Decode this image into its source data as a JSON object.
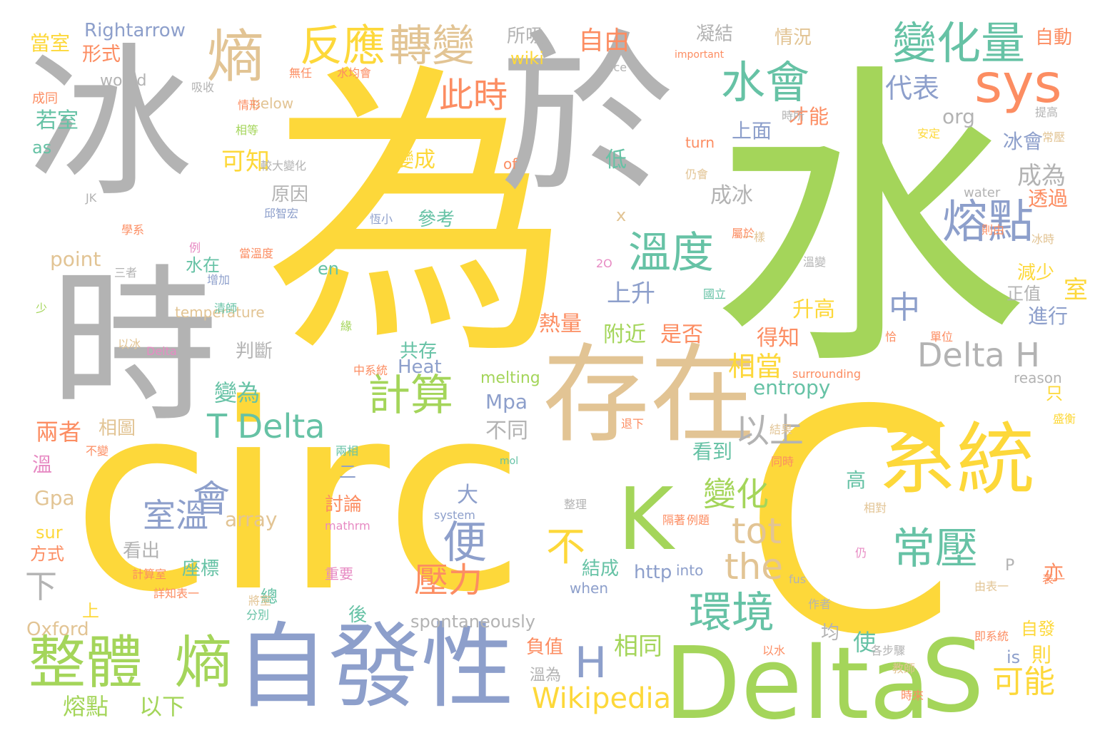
{
  "palette": {
    "yellow": "#fdd83a",
    "green": "#a4d55a",
    "gray": "#b3b3b3",
    "tan": "#e2c494",
    "blue": "#8d9fcb",
    "teal": "#66c2a5",
    "orange": "#fc8d62",
    "pink": "#e78ac3"
  },
  "words": [
    "冰",
    "為",
    "於",
    "水",
    "時",
    "circ",
    "C",
    "存在",
    "系統",
    "自發性",
    "Delta",
    "S",
    "K",
    "sys",
    "整體",
    "熵",
    "熵",
    "反應",
    "轉變",
    "變化量",
    "水會",
    "熔點",
    "溫度",
    "計算",
    "環境",
    "常壓",
    "Delta H",
    "T Delta",
    "此時",
    "以上",
    "中",
    "便",
    "會",
    "室溫",
    "不",
    "tot",
    "the",
    "下",
    "壓力",
    "變化",
    "可能",
    "熔點",
    "以下",
    "H",
    "Wikipedia",
    "相同",
    "上升",
    "附近",
    "是否",
    "熱量",
    "Rightarrow",
    "當室",
    "形式",
    "所吸",
    "wiki",
    "自由",
    "凝結",
    "情況",
    "自動",
    "would",
    "成同",
    "若室",
    "as",
    "代表",
    "上面",
    "org",
    "冰會",
    "成為",
    "透過",
    "才能",
    "可知",
    "變成",
    "低",
    "原因",
    "成冰",
    "參考",
    "point",
    "水在",
    "temperature",
    "en",
    "x",
    "判斷",
    "共存",
    "Heat",
    "得知",
    "升高",
    "相當",
    "entropy",
    "變為",
    "兩者",
    "不同",
    "Mpa",
    "相圖",
    "溫",
    "Gpa",
    "array",
    "sur",
    "方式",
    "看出",
    "座標",
    "討論",
    "大",
    "二",
    "總",
    "看到",
    "高",
    "結成",
    "http",
    "into",
    "when",
    "spontaneously",
    "Oxford",
    "後",
    "負值",
    "溫為",
    "使",
    "均",
    "自發",
    "is",
    "則",
    "亦",
    "P",
    "減少",
    "正值",
    "進行",
    "室",
    "只",
    "reason",
    "melting",
    "surrounding",
    "ice",
    "water",
    "important",
    "fus",
    "system",
    "mathrm",
    "mol",
    "of",
    "turn",
    "below",
    "上",
    "重要",
    "計算室",
    "詳知表一",
    "分別",
    "將室",
    "作者",
    "由表一",
    "表一",
    "以水",
    "各步驟",
    "教師",
    "時來",
    "即系統",
    "單位",
    "安定",
    "提高",
    "常壓",
    "則由",
    "冰時",
    "盛衡",
    "無任",
    "水均會",
    "吸收",
    "情形",
    "相等",
    "較大變化",
    "JK",
    "邱智宏",
    "學系",
    "例",
    "當溫度",
    "三者",
    "增加",
    "清師",
    "少",
    "以冰",
    "Delta",
    "中系統",
    "退下",
    "兩相",
    "同時",
    "不變",
    "整理",
    "隔著",
    "相對",
    "例題",
    "仍",
    "仍會",
    "恆小",
    "緣",
    "一樣",
    "國立",
    "屬於",
    "時所",
    "結果",
    "2O",
    "溫變",
    "恰"
  ]
}
